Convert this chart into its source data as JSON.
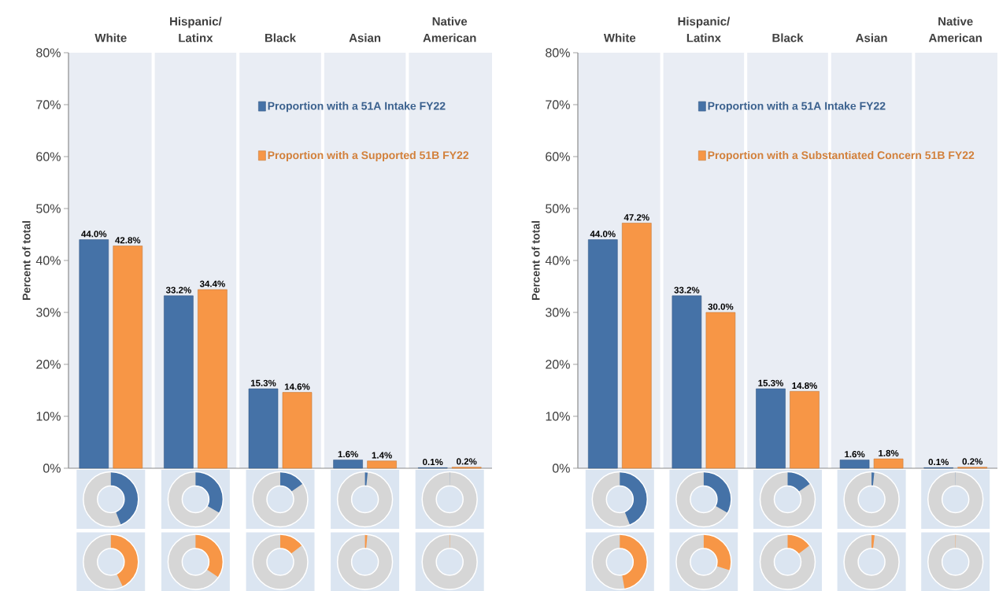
{
  "chart_data": [
    {
      "type": "bar",
      "categories": [
        "White",
        "Hispanic/ Latinx",
        "Black",
        "Asian",
        "Native American"
      ],
      "ylabel": "Percent of total",
      "ylim": [
        0,
        80
      ],
      "yticks": [
        {
          "value": 0,
          "label": "0%"
        },
        {
          "value": 10,
          "label": "10%"
        },
        {
          "value": 20,
          "label": "20%"
        },
        {
          "value": 30,
          "label": "30%"
        },
        {
          "value": 40,
          "label": "40%"
        },
        {
          "value": 50,
          "label": "50%"
        },
        {
          "value": 60,
          "label": "60%"
        },
        {
          "value": 70,
          "label": "70%"
        },
        {
          "value": 80,
          "label": "80%"
        }
      ],
      "legend": "top right",
      "series": [
        {
          "name": "Proportion with a 51A Intake FY22",
          "color": "#4572a7",
          "values": [
            44.0,
            33.2,
            15.3,
            1.6,
            0.1
          ],
          "value_labels": [
            "44.0%",
            "33.2%",
            "15.3%",
            "1.6%",
            "0.1%"
          ]
        },
        {
          "name": "Proportion with a Supported 51B FY22",
          "color": "#f79646",
          "values": [
            42.8,
            34.4,
            14.6,
            1.4,
            0.2
          ],
          "value_labels": [
            "42.8%",
            "34.4%",
            "14.6%",
            "1.4%",
            "0.2%"
          ]
        }
      ]
    },
    {
      "type": "bar",
      "categories": [
        "White",
        "Hispanic/ Latinx",
        "Black",
        "Asian",
        "Native American"
      ],
      "ylabel": "Percent of total",
      "ylim": [
        0,
        80
      ],
      "yticks": [
        {
          "value": 0,
          "label": "0%"
        },
        {
          "value": 10,
          "label": "10%"
        },
        {
          "value": 20,
          "label": "20%"
        },
        {
          "value": 30,
          "label": "30%"
        },
        {
          "value": 40,
          "label": "40%"
        },
        {
          "value": 50,
          "label": "50%"
        },
        {
          "value": 60,
          "label": "60%"
        },
        {
          "value": 70,
          "label": "70%"
        },
        {
          "value": 80,
          "label": "80%"
        }
      ],
      "legend": "top right",
      "series": [
        {
          "name": "Proportion with a 51A Intake FY22",
          "color": "#4572a7",
          "values": [
            44.0,
            33.2,
            15.3,
            1.6,
            0.1
          ],
          "value_labels": [
            "44.0%",
            "33.2%",
            "15.3%",
            "1.6%",
            "0.1%"
          ]
        },
        {
          "name": "Proportion with a Substantiated Concern 51B FY22",
          "color": "#f79646",
          "values": [
            47.2,
            30.0,
            14.8,
            1.8,
            0.2
          ],
          "value_labels": [
            "47.2%",
            "30.0%",
            "14.8%",
            "1.8%",
            "0.2%"
          ]
        }
      ]
    }
  ]
}
